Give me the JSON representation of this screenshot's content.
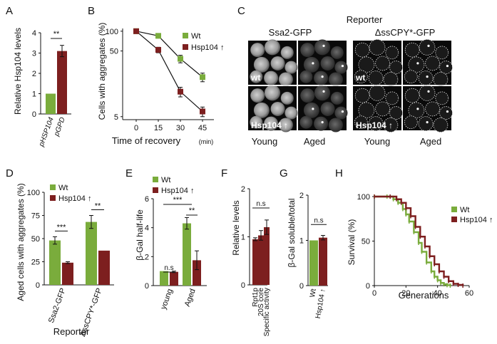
{
  "colors": {
    "green": "#7aac3c",
    "red": "#7d1f1f",
    "axis": "#111111"
  },
  "panel_letters": [
    "A",
    "B",
    "C",
    "D",
    "E",
    "F",
    "G",
    "H"
  ],
  "chart_data": [
    {
      "panel": "A",
      "type": "bar",
      "ylabel": "Relative Hsp104 levels",
      "categories": [
        "pHSP104",
        "pGPD"
      ],
      "values": [
        1.0,
        3.1
      ],
      "errors": [
        0,
        0.28
      ],
      "ylim": [
        0,
        4
      ],
      "yticks": [
        "0",
        "1",
        "2",
        "3",
        "4"
      ],
      "yticks_values": [
        0,
        1,
        2,
        3,
        4
      ],
      "sig": "**"
    },
    {
      "panel": "B",
      "type": "line",
      "ylabel": "Cells with aggregates (%)",
      "xlabel": "Time of recovery",
      "xlabel_unit": "(min)",
      "yscale": "log",
      "x": [
        0,
        15,
        30,
        45
      ],
      "xticks": [
        "0",
        "15",
        "30",
        "45"
      ],
      "yticks": [
        "5",
        "50",
        "100"
      ],
      "yticks_values": [
        5,
        50,
        100
      ],
      "ylim": [
        4.5,
        110
      ],
      "legend": [
        "Wt",
        "Hsp104 ↑"
      ],
      "series": [
        {
          "name": "Wt",
          "values": [
            100,
            85,
            38,
            20
          ],
          "errors": [
            3,
            6,
            5,
            3
          ]
        },
        {
          "name": "Hsp104 ↑",
          "values": [
            100,
            52,
            12,
            6
          ],
          "errors": [
            3,
            5,
            2,
            1
          ]
        }
      ]
    },
    {
      "panel": "D",
      "type": "bar",
      "ylabel": "Aged cells with aggregates (%)",
      "xlabel": "Reporter",
      "categories": [
        "Ssa2-GFP",
        "ΔssCPY*-GFP"
      ],
      "legend": [
        "Wt",
        "Hsp104 ↑"
      ],
      "series": [
        {
          "name": "Wt",
          "values": [
            48,
            68
          ],
          "errors": [
            4,
            7
          ]
        },
        {
          "name": "Hsp104 ↑",
          "values": [
            24,
            37
          ],
          "errors": [
            1,
            0
          ]
        }
      ],
      "ylim": [
        0,
        100
      ],
      "yticks": [
        "0",
        "25",
        "50",
        "75",
        "100"
      ],
      "yticks_values": [
        0,
        25,
        50,
        75,
        100
      ],
      "sig": [
        "***",
        "**"
      ]
    },
    {
      "panel": "E",
      "type": "bar",
      "ylabel": "β-Gal half-life",
      "categories": [
        "young",
        "Aged"
      ],
      "legend": [
        "Wt",
        "Hsp104 ↑"
      ],
      "series": [
        {
          "name": "Wt",
          "values": [
            1.0,
            4.3
          ],
          "errors": [
            0,
            0.4
          ]
        },
        {
          "name": "Hsp104 ↑",
          "values": [
            0.95,
            1.75
          ],
          "errors": [
            0.05,
            0.65
          ]
        }
      ],
      "ylim": [
        0,
        6
      ],
      "yticks": [
        "0",
        "2",
        "4",
        "6"
      ],
      "yticks_values": [
        0,
        2,
        4,
        6
      ],
      "sig": [
        "n.s",
        "**",
        "***"
      ]
    },
    {
      "panel": "F",
      "type": "bar",
      "ylabel": "Relative levels",
      "categories": [
        "Rpt1p",
        "20S core",
        "Specific activity"
      ],
      "values": [
        0.95,
        1.03,
        1.2
      ],
      "errors": [
        0.03,
        0.1,
        0.15
      ],
      "ylim": [
        0,
        2
      ],
      "yticks": [
        "0",
        "1",
        "2"
      ],
      "yticks_values": [
        0,
        1,
        2
      ],
      "sig": "n.s"
    },
    {
      "panel": "G",
      "type": "bar",
      "ylabel": "β-Gal soluble/total",
      "categories": [
        "Wt",
        "Hsp104 ↑"
      ],
      "values": [
        1.0,
        1.06
      ],
      "errors": [
        0,
        0.05
      ],
      "ylim": [
        0,
        2
      ],
      "yticks": [
        "0",
        "1",
        "2"
      ],
      "yticks_values": [
        0,
        1,
        2
      ],
      "sig": "n.s"
    },
    {
      "panel": "H",
      "type": "line",
      "ylabel": "Survival (%)",
      "xlabel": "Generations",
      "xticks": [
        "0",
        "20",
        "40",
        "60"
      ],
      "xticks_values": [
        0,
        20,
        40,
        60
      ],
      "yticks": [
        "0",
        "50",
        "100"
      ],
      "yticks_values": [
        0,
        50,
        100
      ],
      "xlim": [
        0,
        60
      ],
      "ylim": [
        0,
        100
      ],
      "legend": [
        "Wt",
        "Hsp104 ↑"
      ],
      "series": [
        {
          "name": "Wt",
          "x": [
            0,
            8,
            12,
            15,
            18,
            20,
            22,
            25,
            28,
            30,
            33,
            36,
            38,
            40,
            42,
            44,
            46,
            48
          ],
          "values": [
            100,
            100,
            97,
            93,
            86,
            80,
            72,
            60,
            48,
            38,
            26,
            16,
            10,
            6,
            3,
            1.5,
            0.5,
            0
          ]
        },
        {
          "name": "Hsp104 ↑",
          "x": [
            0,
            10,
            14,
            17,
            20,
            23,
            26,
            29,
            32,
            35,
            38,
            41,
            44,
            47,
            50,
            53,
            56
          ],
          "values": [
            100,
            100,
            97,
            93,
            87,
            78,
            66,
            55,
            44,
            33,
            24,
            16,
            10,
            5,
            2,
            0.8,
            0
          ]
        }
      ]
    }
  ],
  "microscopy": {
    "header": "Reporter",
    "columns": [
      "Ssa2-GFP",
      "ΔssCPY*-GFP"
    ],
    "row_labels": [
      "wt",
      "Hsp104 ↑"
    ],
    "bottom_labels": [
      "Young",
      "Aged",
      "Young",
      "Aged"
    ]
  }
}
